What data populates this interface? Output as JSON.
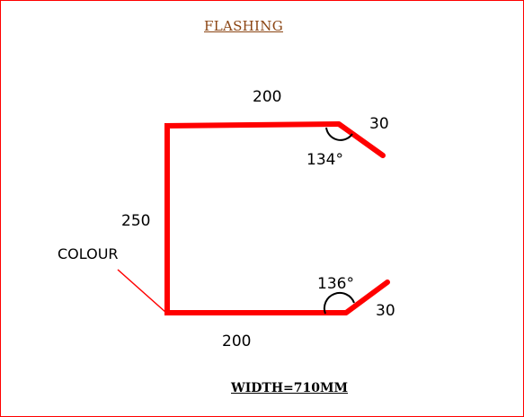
{
  "title": "FLASHING",
  "width_label": "WIDTH=710MM",
  "colour_label": "COLOUR",
  "dimensions": {
    "top_length": "200",
    "top_flange": "30",
    "top_angle": "134°",
    "side_length": "250",
    "bottom_length": "200",
    "bottom_flange": "30",
    "bottom_angle": "136°"
  },
  "colors": {
    "profile_line": "#ff0000",
    "border": "#ff0000",
    "title": "#8B4513",
    "text": "#000000"
  }
}
